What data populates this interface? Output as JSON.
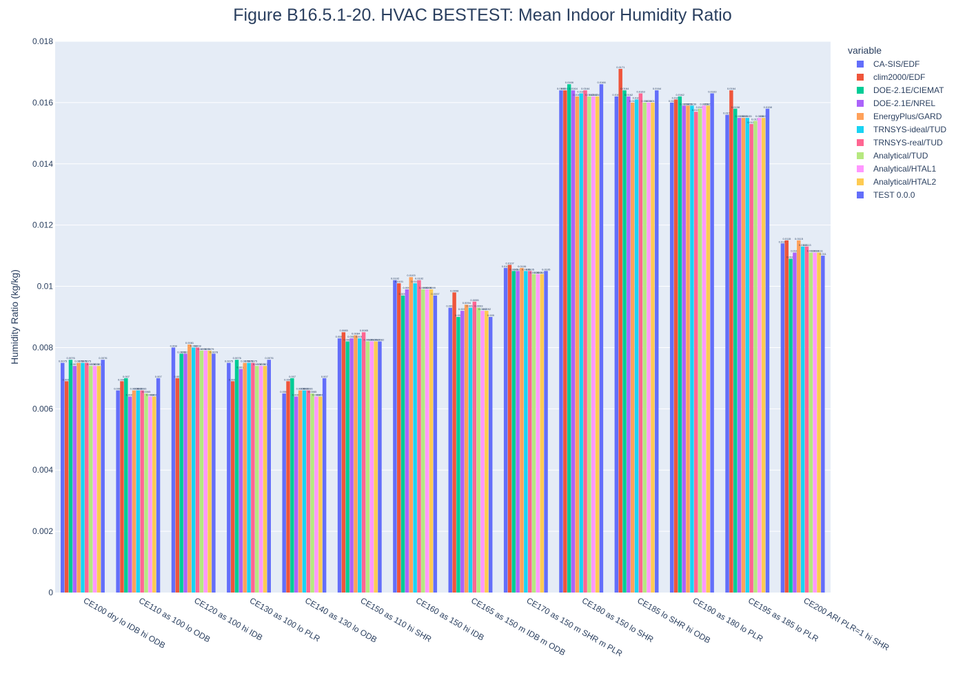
{
  "chart_data": {
    "type": "bar",
    "title": "Figure B16.5.1-20. HVAC BESTEST: Mean Indoor Humidity Ratio",
    "ylabel": "Humidity Ratio (kg/kg)",
    "xlabel": "",
    "ylim": [
      0,
      0.018
    ],
    "yticks": [
      0,
      0.002,
      0.004,
      0.006,
      0.008,
      0.01,
      0.012,
      0.014,
      0.016,
      0.018
    ],
    "ytick_labels": [
      "0",
      "0.002",
      "0.004",
      "0.006",
      "0.008",
      "0.01",
      "0.012",
      "0.014",
      "0.016",
      "0.018"
    ],
    "legend_title": "variable",
    "legend_position": "top-right outside",
    "grid": true,
    "categories": [
      "CE100 dry lo IDB hi ODB",
      "CE110 as 100 lo ODB",
      "CE120 as 100 hi IDB",
      "CE130 as 100 lo PLR",
      "CE140 as 130 lo ODB",
      "CE150 as 110 hi SHR",
      "CE160 as 150 hi IDB",
      "CE165 as 150 m IDB m ODB",
      "CE170 as 150 m SHR m PLR",
      "CE180 as 150 lo SHR",
      "CE185 lo SHR hi ODB",
      "CE190 as 180 lo PLR",
      "CE195 as 185 lo PLR",
      "CE200 ARI  PLR=1 hi SHR"
    ],
    "series": [
      {
        "name": "CA-SIS/EDF",
        "color": "#636efa",
        "values": [
          0.0075,
          0.0066,
          0.008,
          0.0075,
          0.0065,
          0.0083,
          0.0102,
          0.0093,
          0.0106,
          0.0164,
          0.0162,
          0.016,
          0.0156,
          0.0114
        ]
      },
      {
        "name": "clim2000/EDF",
        "color": "#ef553b",
        "values": [
          0.0069,
          0.0069,
          0.007,
          0.0069,
          0.0069,
          0.0085,
          0.0101,
          0.0098,
          0.0107,
          0.0164,
          0.0171,
          0.0161,
          0.0164,
          0.0115
        ]
      },
      {
        "name": "DOE-2.1E/CIEMAT",
        "color": "#00cc96",
        "values": [
          0.0076,
          0.007,
          0.0078,
          0.0076,
          0.007,
          0.0082,
          0.0097,
          0.009,
          0.0105,
          0.0166,
          0.0164,
          0.0162,
          0.0158,
          0.0109
        ]
      },
      {
        "name": "DOE-2.1E/NREL",
        "color": "#ab63fa",
        "values": [
          0.0074,
          0.0064,
          0.0078,
          0.0073,
          0.0064,
          0.0083,
          0.0099,
          0.0092,
          0.0105,
          0.0164,
          0.0162,
          0.0159,
          0.0155,
          0.0111
        ]
      },
      {
        "name": "EnergyPlus/GARD",
        "color": "#ffa15a",
        "values": [
          0.0075,
          0.0066,
          0.0081,
          0.0075,
          0.0066,
          0.0084,
          0.0103,
          0.0094,
          0.0106,
          0.0162,
          0.016,
          0.0159,
          0.0155,
          0.0115
        ]
      },
      {
        "name": "TRNSYS-ideal/TUD",
        "color": "#19d3f3",
        "values": [
          0.0075,
          0.0066,
          0.008,
          0.0075,
          0.0066,
          0.0083,
          0.0101,
          0.0093,
          0.0105,
          0.0163,
          0.0161,
          0.0159,
          0.0155,
          0.0113
        ]
      },
      {
        "name": "TRNSYS-real/TUD",
        "color": "#ff6692",
        "values": [
          0.0075,
          0.0066,
          0.008,
          0.0075,
          0.0066,
          0.0085,
          0.0102,
          0.0095,
          0.0105,
          0.0164,
          0.0163,
          0.0157,
          0.0153,
          0.0113
        ]
      },
      {
        "name": "Analytical/TUD",
        "color": "#b6e880",
        "values": [
          0.0074,
          0.0065,
          0.0079,
          0.0074,
          0.0065,
          0.0082,
          0.0099,
          0.0093,
          0.0104,
          0.0162,
          0.016,
          0.0158,
          0.0154,
          0.0111
        ]
      },
      {
        "name": "Analytical/HTAL1",
        "color": "#ff97ff",
        "values": [
          0.0074,
          0.0064,
          0.0079,
          0.0074,
          0.0064,
          0.0082,
          0.0099,
          0.0092,
          0.0104,
          0.0162,
          0.016,
          0.0159,
          0.0155,
          0.0111
        ]
      },
      {
        "name": "Analytical/HTAL2",
        "color": "#fecb52",
        "values": [
          0.0074,
          0.0064,
          0.0079,
          0.0074,
          0.0064,
          0.0082,
          0.0099,
          0.0092,
          0.0104,
          0.0162,
          0.016,
          0.0159,
          0.0155,
          0.0111
        ]
      },
      {
        "name": "TEST 0.0.0",
        "color": "#636efa",
        "values": [
          0.0076,
          0.007,
          0.0078,
          0.0076,
          0.007,
          0.0082,
          0.0097,
          0.009,
          0.0105,
          0.0166,
          0.0164,
          0.0163,
          0.0158,
          0.011
        ]
      }
    ]
  }
}
